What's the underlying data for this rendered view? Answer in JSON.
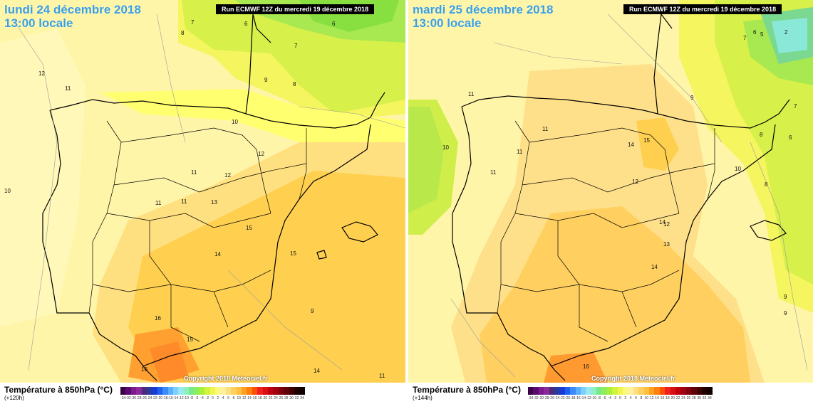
{
  "panels": [
    {
      "id": "left",
      "date_line1": "lundi 24 décembre 2018",
      "date_line2": "13:00 locale",
      "run_label": "Run ECMWF 12Z du mercredi 19 décembre 2018",
      "copyright": "Copyright 2018 Meteociel.fr",
      "legend_title": "Température à 850hPa (°C)",
      "lead_time": "(+120h)",
      "isotherm_labels": [
        "7",
        "8",
        "6",
        "6",
        "12",
        "11",
        "7",
        "9",
        "8",
        "10",
        "10",
        "12",
        "11",
        "12",
        "13",
        "11",
        "11",
        "15",
        "14",
        "15",
        "16",
        "15",
        "16",
        "14",
        "11",
        "9"
      ]
    },
    {
      "id": "right",
      "date_line1": "mardi 25 décembre 2018",
      "date_line2": "13:00 locale",
      "run_label": "Run ECMWF 12Z du mercredi 19 décembre 2018",
      "copyright": "Copyright 2018 Meteociel.fr",
      "legend_title": "Température à 850hPa (°C)",
      "lead_time": "(+144h)",
      "isotherm_labels": [
        "6",
        "5",
        "2",
        "7",
        "11",
        "9",
        "10",
        "11",
        "11",
        "14",
        "15",
        "12",
        "14",
        "10",
        "12",
        "13",
        "14",
        "16",
        "8",
        "7",
        "8",
        "9",
        "9",
        "11",
        "6"
      ]
    }
  ],
  "legend_scale": {
    "colors": [
      "#3c0046",
      "#5a0a6e",
      "#7a1a8c",
      "#8c2a9c",
      "#4a2a7a",
      "#2a3a9a",
      "#1a3ad8",
      "#2060f0",
      "#3a8af8",
      "#5ab0ff",
      "#7ad0ff",
      "#9ae8f0",
      "#8cf0c0",
      "#7ae88a",
      "#8cee5a",
      "#aaf03a",
      "#d0f53a",
      "#f0f550",
      "#fafa7a",
      "#fff0a0",
      "#ffe080",
      "#ffd060",
      "#ffc040",
      "#ffa020",
      "#ff8010",
      "#ff5000",
      "#f02020",
      "#d81010",
      "#c00010",
      "#a00010",
      "#800010",
      "#600008",
      "#400000",
      "#200000",
      "#100000"
    ],
    "labels": [
      "-34",
      "-32",
      "-30",
      "-28",
      "-26",
      "-24",
      "-22",
      "-20",
      "-18",
      "-16",
      "-14",
      "-12",
      "-10",
      "-8",
      "-6",
      "-4",
      "-2",
      "0",
      "2",
      "4",
      "6",
      "8",
      "10",
      "12",
      "14",
      "16",
      "18",
      "20",
      "22",
      "24",
      "26",
      "28",
      "30",
      "32",
      "34"
    ]
  }
}
